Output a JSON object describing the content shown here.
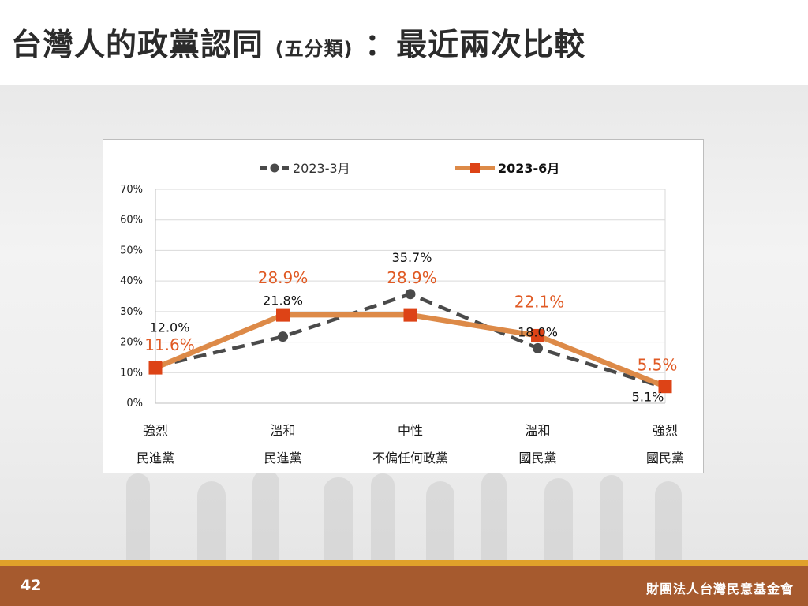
{
  "slide": {
    "title_main": "台灣人的政黨認同",
    "title_sub": "(五分類)",
    "title_tail": "：最近兩次比較",
    "page_number": "42",
    "organization": "財團法人台灣民意基金會"
  },
  "chart_data": {
    "type": "line",
    "categories": [
      [
        "強烈",
        "民進黨"
      ],
      [
        "溫和",
        "民進黨"
      ],
      [
        "中性",
        "不偏任何政黨"
      ],
      [
        "溫和",
        "國民黨"
      ],
      [
        "強烈",
        "國民黨"
      ]
    ],
    "y_ticks": [
      "0%",
      "10%",
      "20%",
      "30%",
      "40%",
      "50%",
      "60%",
      "70%"
    ],
    "ylim": [
      0,
      70
    ],
    "grid": true,
    "legend_position": "top",
    "series": [
      {
        "name": "2023-3月",
        "values": [
          12.0,
          21.8,
          35.7,
          18.0,
          5.1
        ],
        "labels": [
          "12.0%",
          "21.8%",
          "35.7%",
          "18.0%",
          "5.1%"
        ],
        "color": "#4a4a4a",
        "style": "dashed",
        "marker": "circle"
      },
      {
        "name": "2023-6月",
        "values": [
          11.6,
          28.9,
          28.9,
          22.1,
          5.5
        ],
        "labels": [
          "11.6%",
          "28.9%",
          "28.9%",
          "22.1%",
          "5.5%"
        ],
        "color": "#dd8a48",
        "marker_color": "#dd4316",
        "label_color": "#e05a24",
        "style": "solid",
        "marker": "square"
      }
    ]
  }
}
